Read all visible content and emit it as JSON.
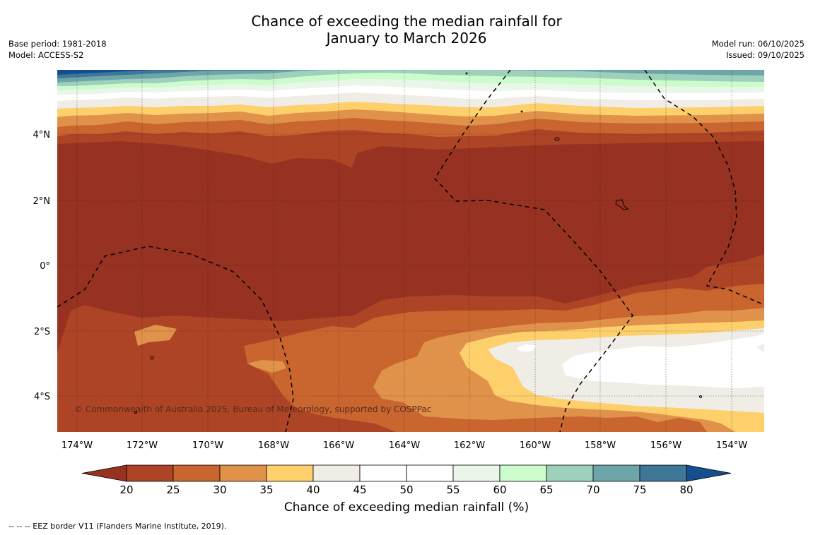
{
  "title": {
    "line1": "Chance of exceeding the median rainfall for",
    "line2": "January to March 2026"
  },
  "meta_left": {
    "base_period": "Base period: 1981-2018",
    "model": "Model: ACCESS-S2"
  },
  "meta_right": {
    "model_run": "Model run: 06/10/2025",
    "issued": "Issued: 09/10/2025"
  },
  "map": {
    "lon_ticks": [
      "174°W",
      "172°W",
      "170°W",
      "168°W",
      "166°W",
      "164°W",
      "162°W",
      "160°W",
      "158°W",
      "156°W",
      "154°W"
    ],
    "lat_ticks": [
      "4°N",
      "2°N",
      "0°",
      "2°S",
      "4°S"
    ],
    "copyright": "© Commonwealth of Australia 2025, Bureau of Meteorology, supported by COSPPac"
  },
  "colorbar": {
    "labels": [
      "20",
      "25",
      "30",
      "35",
      "40",
      "45",
      "50",
      "55",
      "60",
      "65",
      "70",
      "75",
      "80"
    ],
    "colors": [
      "#ad4425",
      "#c9652f",
      "#e1924a",
      "#fdd06c",
      "#f0ece6",
      "#ffffff",
      "#ffffff",
      "#eaf6e9",
      "#ccfccc",
      "#9dd1bb",
      "#6ea5a8",
      "#3f7799"
    ],
    "under_color": "#973121",
    "over_color": "#164f8d",
    "title": "Chance of exceeding median rainfall (%)"
  },
  "footnote": "--  --  -- EEZ border V11 (Flanders Marine Institute, 2019)."
}
